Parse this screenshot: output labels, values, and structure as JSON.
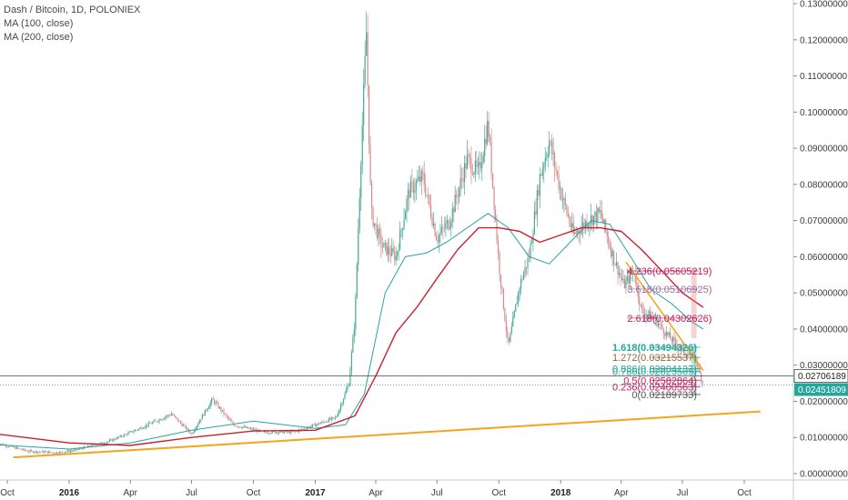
{
  "legend": {
    "symbol": "Dash / Bitcoin, 1D, POLONIEX",
    "ma100": "MA (100, close)",
    "ma200": "MA (200, close)"
  },
  "colors": {
    "up": "#4aa79a",
    "down": "#d88a8a",
    "ma100": "#2aa3a3",
    "ma200": "#cc1f2c",
    "trendline": "#f7a21b",
    "fib_red": "#c2185b",
    "fib_green": "#26a69a",
    "last_price_bg": "#26a69a"
  },
  "price_tags": {
    "white_line": "0.02706189",
    "last_price": "0.02451809"
  },
  "fib_extension_labels": [
    {
      "text": "4.236(0.05605219)",
      "color": "#c2185b"
    },
    {
      "text": "3.618(0.05106925)",
      "color": "#9c6b9c"
    },
    {
      "text": "2.618(0.04302626)",
      "color": "#c2185b"
    }
  ],
  "fib_retracement_labels": [
    {
      "text": "1.618(0.03494326)",
      "color": "#26a69a"
    },
    {
      "text": "1.272(0.03215537)",
      "color": "#8a6d3b"
    },
    {
      "text": "0.886(0.02904137)",
      "color": "#26a69a"
    },
    {
      "text": "0.786(0.02823569)",
      "color": "#26a69a"
    },
    {
      "text": "0.5(0.02582864)",
      "color": "#c2185b"
    },
    {
      "text": "0.236(0.02400563)",
      "color": "#c2185b"
    },
    {
      "text": "0(0.02189733)",
      "color": "#555555"
    }
  ],
  "chart_data": {
    "type": "line",
    "title": "Dash / Bitcoin, 1D, POLONIEX",
    "x_tick_labels": [
      {
        "label": "Oct",
        "bold": false
      },
      {
        "label": "2016",
        "bold": true
      },
      {
        "label": "Apr",
        "bold": false
      },
      {
        "label": "Jul",
        "bold": false
      },
      {
        "label": "Oct",
        "bold": false
      },
      {
        "label": "2017",
        "bold": true
      },
      {
        "label": "Apr",
        "bold": false
      },
      {
        "label": "Jul",
        "bold": false
      },
      {
        "label": "Oct",
        "bold": false
      },
      {
        "label": "2018",
        "bold": true
      },
      {
        "label": "Apr",
        "bold": false
      },
      {
        "label": "Jul",
        "bold": false
      },
      {
        "label": "Oct",
        "bold": false
      }
    ],
    "y_tick_labels": [
      "0.00000000",
      "0.01000000",
      "0.02000000",
      "0.03000000",
      "0.04000000",
      "0.05000000",
      "0.06000000",
      "0.07000000",
      "0.08000000",
      "0.09000000",
      "0.10000000",
      "0.11000000",
      "0.12000000",
      "0.13000000"
    ],
    "ylim": [
      0,
      0.13
    ],
    "x_range": [
      "2015-09-15",
      "2018-11-15"
    ],
    "series": [
      {
        "name": "Dash / Bitcoin",
        "x": [
          "2015-09-15",
          "2015-11-01",
          "2015-12-15",
          "2016-01-10",
          "2016-03-01",
          "2016-04-15",
          "2016-06-01",
          "2016-07-01",
          "2016-08-01",
          "2016-09-01",
          "2016-10-15",
          "2016-12-01",
          "2017-01-01",
          "2017-02-01",
          "2017-02-20",
          "2017-03-01",
          "2017-03-10",
          "2017-03-18",
          "2017-03-25",
          "2017-04-10",
          "2017-05-01",
          "2017-05-20",
          "2017-06-10",
          "2017-07-01",
          "2017-07-20",
          "2017-08-15",
          "2017-09-01",
          "2017-09-15",
          "2017-10-01",
          "2017-10-15",
          "2017-11-01",
          "2017-11-15",
          "2017-12-01",
          "2017-12-15",
          "2018-01-01",
          "2018-01-20",
          "2018-02-10",
          "2018-03-01",
          "2018-03-20",
          "2018-04-05",
          "2018-04-20",
          "2018-05-01",
          "2018-05-20",
          "2018-06-10",
          "2018-07-01",
          "2018-07-20",
          "2018-08-01"
        ],
        "values": [
          0.0085,
          0.0062,
          0.0058,
          0.0065,
          0.009,
          0.0125,
          0.0165,
          0.011,
          0.0205,
          0.0135,
          0.0115,
          0.0115,
          0.0135,
          0.0155,
          0.025,
          0.043,
          0.088,
          0.122,
          0.072,
          0.063,
          0.06,
          0.078,
          0.082,
          0.065,
          0.07,
          0.087,
          0.083,
          0.097,
          0.058,
          0.035,
          0.052,
          0.06,
          0.082,
          0.092,
          0.078,
          0.066,
          0.07,
          0.072,
          0.06,
          0.052,
          0.056,
          0.045,
          0.043,
          0.038,
          0.034,
          0.032,
          0.0245
        ]
      },
      {
        "name": "MA (100, close)",
        "x": [
          "2015-09-15",
          "2016-01-01",
          "2016-04-01",
          "2016-07-01",
          "2016-10-01",
          "2017-01-01",
          "2017-02-15",
          "2017-03-15",
          "2017-04-15",
          "2017-05-15",
          "2017-06-15",
          "2017-07-15",
          "2017-08-15",
          "2017-09-15",
          "2017-10-15",
          "2017-11-15",
          "2017-12-15",
          "2018-01-15",
          "2018-02-15",
          "2018-03-15",
          "2018-04-15",
          "2018-05-15",
          "2018-06-15",
          "2018-07-15",
          "2018-08-01"
        ],
        "values": [
          0.008,
          0.0068,
          0.0085,
          0.012,
          0.0145,
          0.0125,
          0.0135,
          0.022,
          0.05,
          0.06,
          0.061,
          0.064,
          0.068,
          0.072,
          0.068,
          0.06,
          0.058,
          0.064,
          0.07,
          0.069,
          0.06,
          0.051,
          0.047,
          0.042,
          0.04
        ]
      },
      {
        "name": "MA (200, close)",
        "x": [
          "2015-09-15",
          "2016-01-01",
          "2016-04-01",
          "2016-07-01",
          "2016-10-01",
          "2017-01-01",
          "2017-03-01",
          "2017-04-01",
          "2017-05-01",
          "2017-06-01",
          "2017-07-01",
          "2017-08-01",
          "2017-09-01",
          "2017-10-01",
          "2017-11-01",
          "2017-12-01",
          "2018-01-01",
          "2018-02-01",
          "2018-03-01",
          "2018-04-01",
          "2018-05-01",
          "2018-06-01",
          "2018-07-01",
          "2018-08-01"
        ],
        "values": [
          0.011,
          0.0085,
          0.0078,
          0.01,
          0.0118,
          0.012,
          0.016,
          0.027,
          0.039,
          0.046,
          0.054,
          0.062,
          0.068,
          0.068,
          0.067,
          0.064,
          0.066,
          0.068,
          0.068,
          0.067,
          0.062,
          0.056,
          0.05,
          0.046
        ]
      }
    ],
    "trendline": {
      "x": [
        "2015-10-10",
        "2018-10-25"
      ],
      "values": [
        0.0045,
        0.0172
      ]
    },
    "horizontal_lines": [
      0.02706189,
      0.02451809
    ],
    "fib_extension_levels": [
      0.05605219,
      0.05106925,
      0.04302626
    ],
    "fib_retracement_levels": [
      0.03494326,
      0.03215537,
      0.02904137,
      0.02823569,
      0.02582864,
      0.02400563,
      0.02189733
    ],
    "grid": false,
    "legend_position": "top-left"
  }
}
